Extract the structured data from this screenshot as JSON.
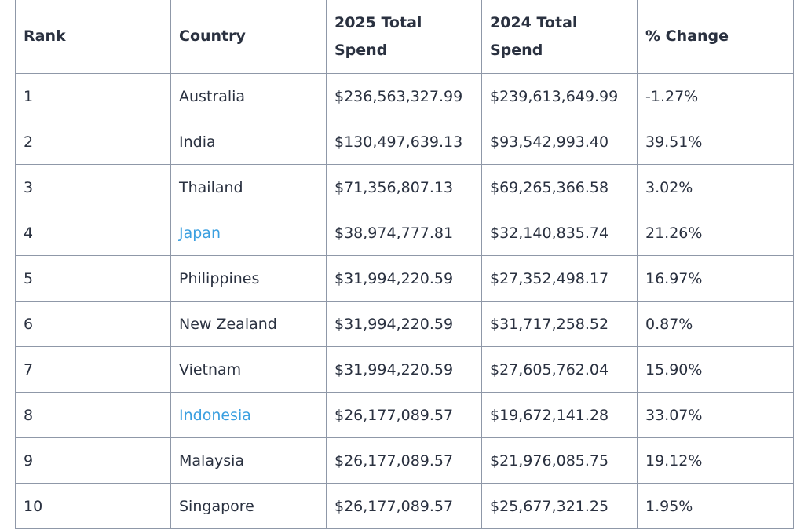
{
  "table": {
    "header": [
      "Rank",
      "Country",
      "2025 Total Spend",
      "2024 Total Spend",
      "% Change"
    ],
    "rows": [
      [
        "1",
        "Australia",
        "$236,563,327.99",
        "$239,613,649.99",
        "-1.27%"
      ],
      [
        "2",
        "India",
        "$130,497,639.13",
        "$93,542,993.40",
        "39.51%"
      ],
      [
        "3",
        "Thailand",
        "$71,356,807.13",
        "$69,265,366.58",
        "3.02%"
      ],
      [
        "4",
        "Japan",
        "$38,974,777.81",
        "$32,140,835.74",
        "21.26%"
      ],
      [
        "5",
        "Philippines",
        "$31,994,220.59",
        "$27,352,498.17",
        "16.97%"
      ],
      [
        "6",
        "New Zealand",
        "$31,994,220.59",
        "$31,717,258.52",
        "0.87%"
      ],
      [
        "7",
        "Vietnam",
        "$31,994,220.59",
        "$27,605,762.04",
        "15.90%"
      ],
      [
        "8",
        "Indonesia",
        "$26,177,089.57",
        "$19,672,141.28",
        "33.07%"
      ],
      [
        "9",
        "Malaysia",
        "$26,177,089.57",
        "$21,976,085.75",
        "19.12%"
      ],
      [
        "10",
        "Singapore",
        "$26,177,089.57",
        "$25,677,321.25",
        "1.95%"
      ]
    ],
    "link_rows": [
      3,
      7
    ],
    "link_color": "#3a9fe0"
  }
}
